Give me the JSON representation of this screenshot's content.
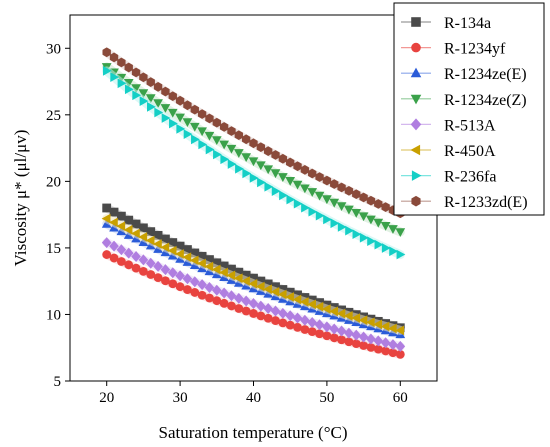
{
  "chart_data": {
    "type": "scatter",
    "xlabel": "Saturation temperature (°C)",
    "ylabel": "Viscosity μ* (μl/μv)",
    "xlim": [
      15,
      65
    ],
    "ylim": [
      5,
      32.5
    ],
    "xticks": [
      20,
      30,
      40,
      50,
      60
    ],
    "yticks": [
      5,
      10,
      15,
      20,
      25,
      30
    ],
    "grid": false,
    "legend_position": "top-right",
    "x": [
      20,
      21,
      22,
      23,
      24,
      25,
      26,
      27,
      28,
      29,
      30,
      31,
      32,
      33,
      34,
      35,
      36,
      37,
      38,
      39,
      40,
      41,
      42,
      43,
      44,
      45,
      46,
      47,
      48,
      49,
      50,
      51,
      52,
      53,
      54,
      55,
      56,
      57,
      58,
      59,
      60
    ],
    "series": [
      {
        "name": "R-134a",
        "marker": "square",
        "color": "#4a4a4a",
        "y_start": 18.0,
        "y_end": 9.0
      },
      {
        "name": "R-1234yf",
        "marker": "circle",
        "color": "#e8433f",
        "y_start": 14.5,
        "y_end": 7.0
      },
      {
        "name": "R-1234ze(E)",
        "marker": "triangle-up",
        "color": "#2a5bd8",
        "y_start": 16.8,
        "y_end": 8.5
      },
      {
        "name": "R-1234ze(Z)",
        "marker": "triangle-down",
        "color": "#3aa14a",
        "y_start": 28.6,
        "y_end": 16.2
      },
      {
        "name": "R-513A",
        "marker": "diamond",
        "color": "#b07ee0",
        "y_start": 15.4,
        "y_end": 7.6
      },
      {
        "name": "R-450A",
        "marker": "triangle-left",
        "color": "#c9a000",
        "y_start": 17.2,
        "y_end": 8.8
      },
      {
        "name": "R-236fa",
        "marker": "triangle-right",
        "color": "#14cfc6",
        "y_start": 28.3,
        "y_end": 14.5
      },
      {
        "name": "R-1233zd(E)",
        "marker": "hexagon",
        "color": "#8a4a3a",
        "y_start": 29.7,
        "y_end": 17.6
      }
    ]
  }
}
